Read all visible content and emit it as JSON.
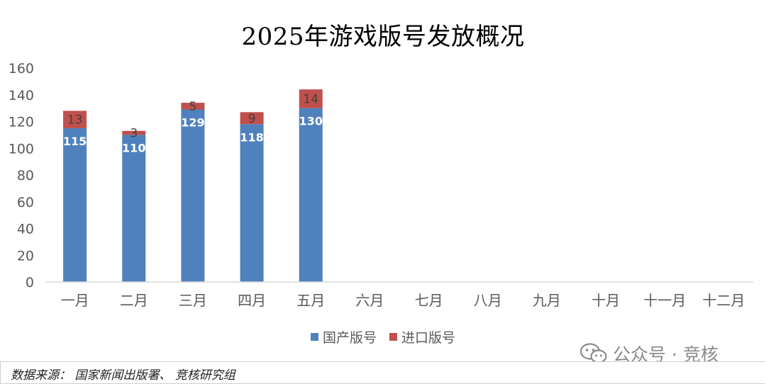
{
  "chart_data": {
    "type": "bar",
    "stacked": true,
    "title": "2025年游戏版号发放概况",
    "categories": [
      "一月",
      "二月",
      "三月",
      "四月",
      "五月",
      "六月",
      "七月",
      "八月",
      "九月",
      "十月",
      "十一月",
      "十二月"
    ],
    "series": [
      {
        "name": "国产版号",
        "color": "#4F81BD",
        "values": [
          115,
          110,
          129,
          118,
          130,
          null,
          null,
          null,
          null,
          null,
          null,
          null
        ]
      },
      {
        "name": "进口版号",
        "color": "#C0504D",
        "values": [
          13,
          3,
          5,
          9,
          14,
          null,
          null,
          null,
          null,
          null,
          null,
          null
        ]
      }
    ],
    "ylim": [
      0,
      160
    ],
    "yticks": [
      0,
      20,
      40,
      60,
      80,
      100,
      120,
      140,
      160
    ],
    "grid": false,
    "legend_position": "bottom"
  },
  "watermark": {
    "text": "公众号 · 竞核",
    "icon": "wechat-icon"
  },
  "source": "数据来源： 国家新闻出版署、 竞核研究组"
}
